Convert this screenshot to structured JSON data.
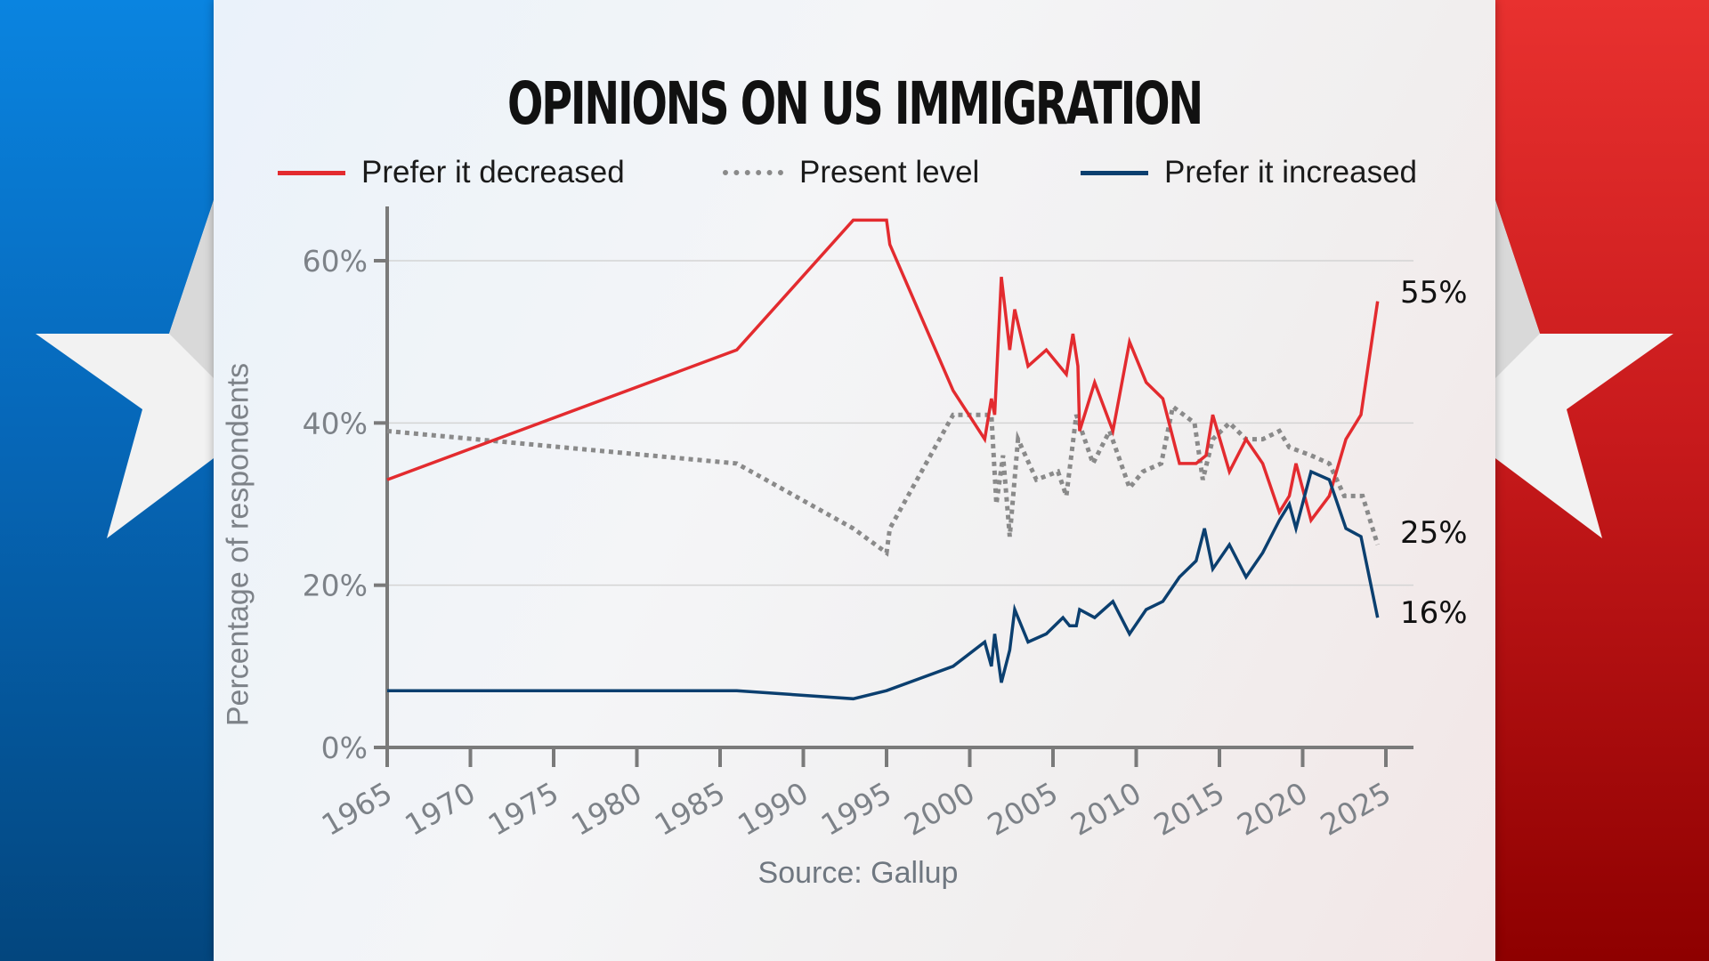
{
  "title": "OPINIONS ON US IMMIGRATION",
  "source": "Source: Gallup",
  "colors": {
    "decreased": "#e32b2f",
    "present": "#8a8a8a",
    "increased": "#0b3f6f"
  },
  "chart_data": {
    "type": "line",
    "title": "OPINIONS ON US IMMIGRATION",
    "xlabel": "",
    "ylabel": "Percentage of respondents",
    "xlim": [
      1965,
      2025
    ],
    "ylim": [
      0,
      65
    ],
    "x_ticks": [
      "1965",
      "1970",
      "1975",
      "1980",
      "1985",
      "1990",
      "1995",
      "2000",
      "2005",
      "2010",
      "2015",
      "2020",
      "2025"
    ],
    "y_ticks": [
      "0%",
      "20%",
      "40%",
      "60%"
    ],
    "grid": true,
    "legend_position": "top",
    "series": [
      {
        "name": "Prefer it decreased",
        "style": "solid",
        "end_label": "55%",
        "x": [
          1965,
          1986,
          1993,
          1995,
          1995.2,
          1999,
          2000.9,
          2001.3,
          2001.5,
          2001.9,
          2002.4,
          2002.7,
          2003.5,
          2004.6,
          2005.8,
          2006.2,
          2006.5,
          2006.6,
          2007.5,
          2008.6,
          2009.6,
          2010.6,
          2011.6,
          2012.6,
          2013.6,
          2014.2,
          2014.6,
          2015.6,
          2016.6,
          2017.6,
          2018.6,
          2019.2,
          2019.6,
          2020.5,
          2021.6,
          2022.6,
          2023.5,
          2024.5
        ],
        "values": [
          33,
          49,
          65,
          65,
          62,
          44,
          38,
          43,
          41,
          58,
          49,
          54,
          47,
          49,
          46,
          51,
          47,
          39,
          45,
          39,
          50,
          45,
          43,
          35,
          35,
          36,
          41,
          34,
          38,
          35,
          29,
          31,
          35,
          28,
          31,
          38,
          41,
          55
        ]
      },
      {
        "name": "Present level",
        "style": "dotted",
        "end_label": "25%",
        "x": [
          1965,
          1986,
          1993,
          1995,
          1995.2,
          1999,
          2001,
          2001.3,
          2001.6,
          2002,
          2002.4,
          2002.9,
          2004,
          2005.3,
          2005.8,
          2006.4,
          2007.4,
          2008.4,
          2009.6,
          2010.4,
          2011.5,
          2012.2,
          2013.5,
          2014,
          2014.6,
          2015.6,
          2016.6,
          2017.6,
          2018.6,
          2019.2,
          2020.5,
          2021.6,
          2022.5,
          2023.6,
          2024.5
        ],
        "values": [
          39,
          35,
          27,
          24,
          27,
          41,
          41,
          41,
          30,
          36,
          26,
          38,
          33,
          34,
          31,
          41,
          35,
          39,
          32,
          34,
          35,
          42,
          40,
          33,
          38,
          40,
          38,
          38,
          39,
          37,
          36,
          35,
          31,
          31,
          25
        ]
      },
      {
        "name": "Prefer it increased",
        "style": "solid",
        "end_label": "16%",
        "x": [
          1965,
          1986,
          1993,
          1995,
          1999,
          2000.9,
          2001.3,
          2001.5,
          2001.9,
          2002.4,
          2002.7,
          2003.5,
          2004.6,
          2005.6,
          2006,
          2006.4,
          2006.6,
          2007.5,
          2008.6,
          2009.6,
          2010.6,
          2011.6,
          2012.6,
          2013.6,
          2014.1,
          2014.6,
          2015.6,
          2016.6,
          2017.6,
          2018.6,
          2019.2,
          2019.6,
          2020.5,
          2021.6,
          2022.6,
          2023.5,
          2024.5
        ],
        "values": [
          7,
          7,
          6,
          7,
          10,
          13,
          10,
          14,
          8,
          12,
          17,
          13,
          14,
          16,
          15,
          15,
          17,
          16,
          18,
          14,
          17,
          18,
          21,
          23,
          27,
          22,
          25,
          21,
          24,
          28,
          30,
          27,
          34,
          33,
          27,
          26,
          16
        ]
      }
    ]
  }
}
